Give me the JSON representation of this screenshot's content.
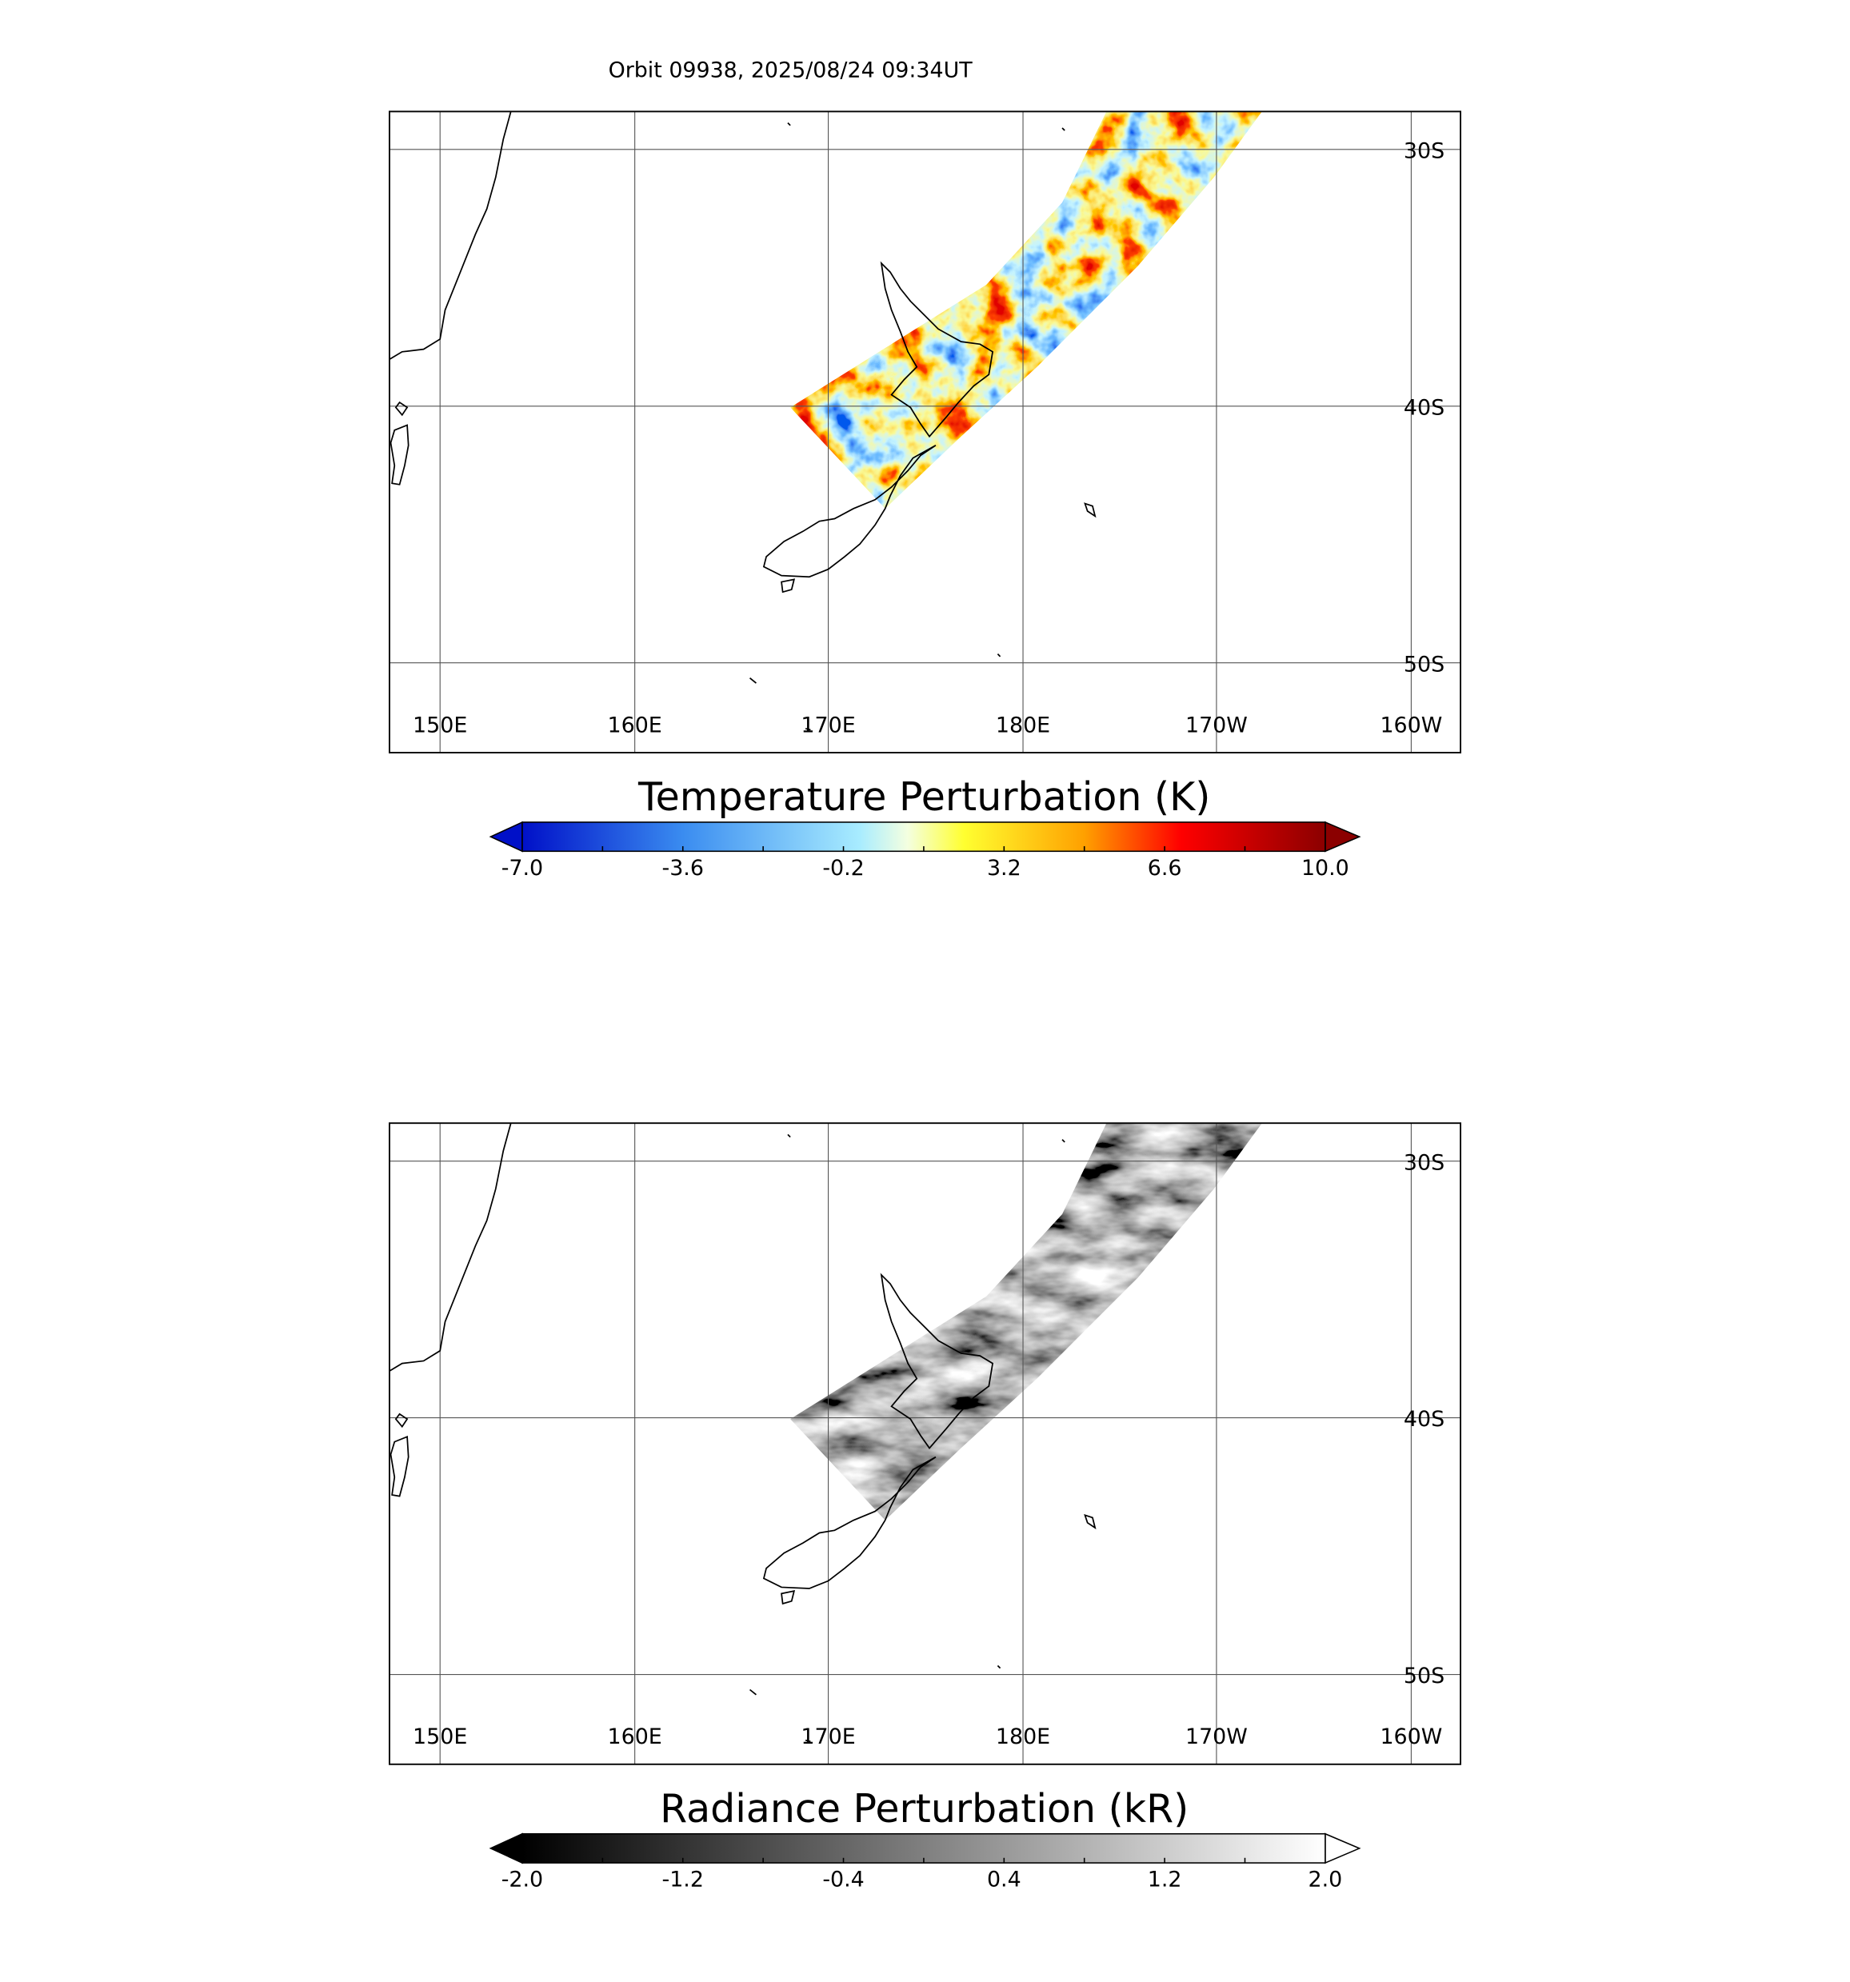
{
  "title": "Orbit 09938, 2025/08/24 09:34UT",
  "panels": [
    {
      "lon_labels": [
        "150E",
        "160E",
        "170E",
        "180E",
        "170W",
        "160W"
      ],
      "lat_labels": [
        "30S",
        "40S",
        "50S"
      ],
      "colorbar": {
        "label": "Temperature Perturbation (K)",
        "ticks": [
          "-7.0",
          "-3.6",
          "-0.2",
          "3.2",
          "6.6",
          "10.0"
        ]
      }
    },
    {
      "lon_labels": [
        "150E",
        "160E",
        "170E",
        "180E",
        "170W",
        "160W"
      ],
      "lat_labels": [
        "30S",
        "40S",
        "50S"
      ],
      "colorbar": {
        "label": "Radiance Perturbation (kR)",
        "ticks": [
          "-2.0",
          "-1.2",
          "-0.4",
          "0.4",
          "1.2",
          "2.0"
        ]
      }
    }
  ]
}
